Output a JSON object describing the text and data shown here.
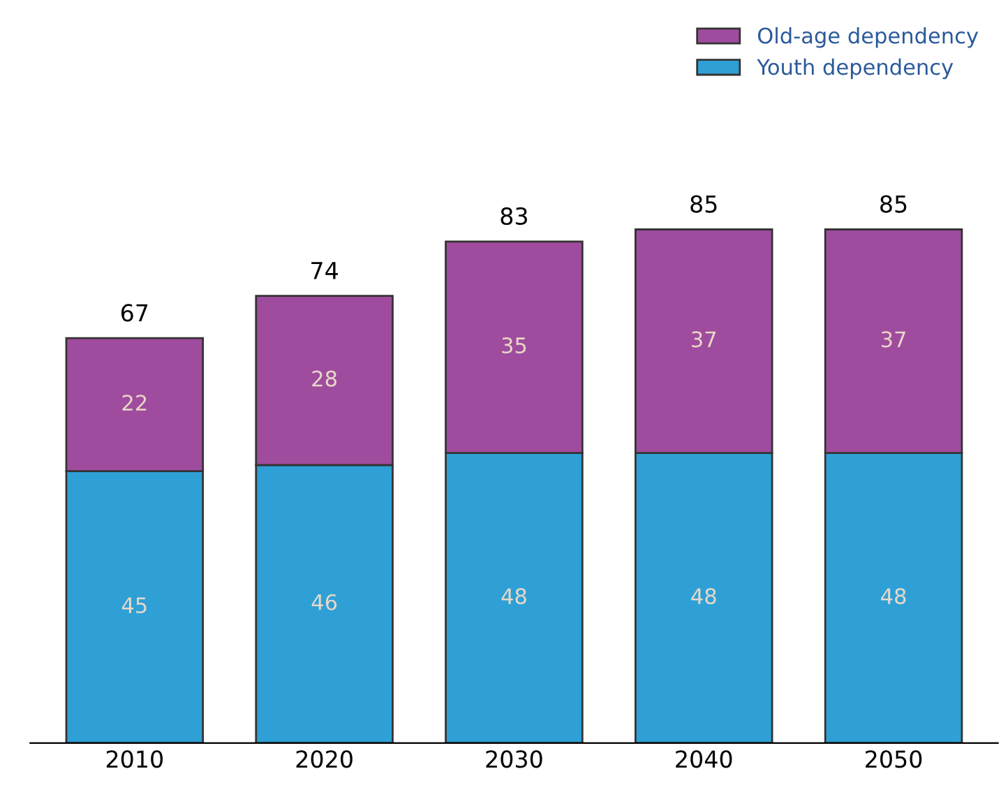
{
  "chart_data": {
    "type": "bar",
    "stacked": true,
    "data_labels": true,
    "legend": "top right",
    "grid": false,
    "categories": [
      "2010",
      "2020",
      "2030",
      "2040",
      "2050"
    ],
    "series": [
      {
        "name": "Youth dependency",
        "color": "#2ea0d6",
        "values": [
          45,
          46,
          48,
          48,
          48
        ]
      },
      {
        "name": "Old-age dependency",
        "color": "#a04c9e",
        "values": [
          22,
          28,
          35,
          37,
          37
        ]
      }
    ],
    "totals": [
      "67",
      "74",
      "83",
      "85",
      "85"
    ]
  }
}
